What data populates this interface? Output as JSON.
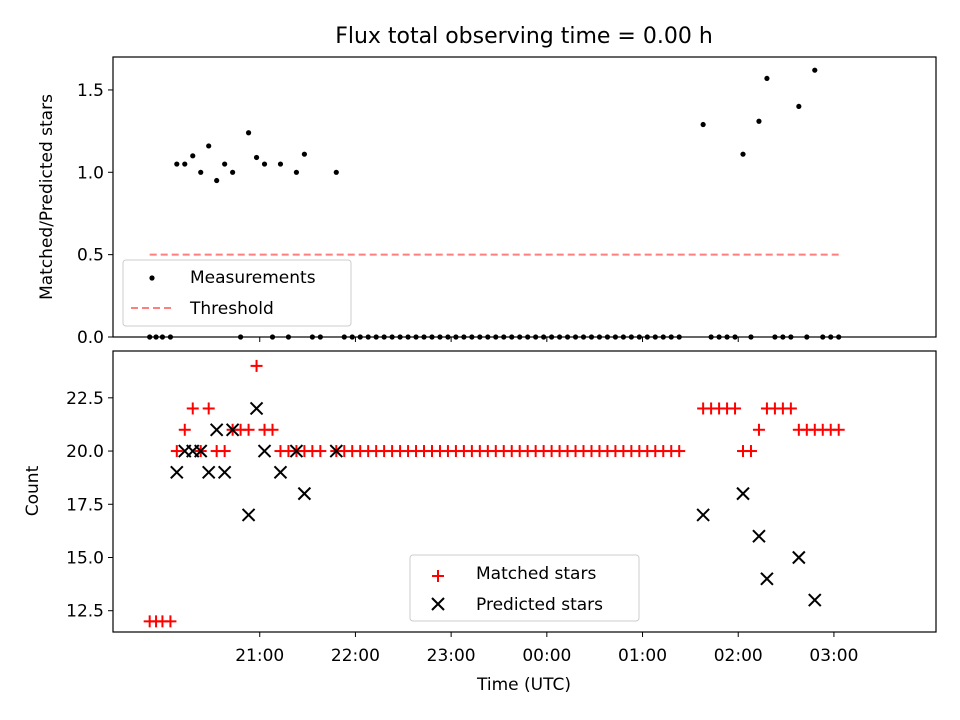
{
  "chart_data": [
    {
      "type": "scatter",
      "title": "Flux total observing time = 0.00 h",
      "xlabel": "",
      "ylabel": "Matched/Predicted stars",
      "xlim": [
        -32,
        484
      ],
      "ylim": [
        0,
        1.7
      ],
      "yticks": [
        0.0,
        0.5,
        1.0,
        1.5
      ],
      "ytick_labels": [
        "0.0",
        "0.5",
        "1.0",
        "1.5"
      ],
      "xticks": [
        60,
        120,
        180,
        240,
        300,
        360
      ],
      "legend": {
        "position": "lower-left",
        "entries": [
          {
            "key": "measurements",
            "label": "Measurements"
          },
          {
            "key": "threshold",
            "label": "Threshold"
          }
        ]
      },
      "series": [
        {
          "key": "measurements",
          "name": "Measurements",
          "color": "#000000",
          "marker": "dot",
          "points": [
            [
              -9,
              0
            ],
            [
              -5,
              0
            ],
            [
              -1,
              0
            ],
            [
              4,
              0
            ],
            [
              8,
              1.05
            ],
            [
              13,
              1.05
            ],
            [
              18,
              1.1
            ],
            [
              23,
              1.0
            ],
            [
              28,
              1.16
            ],
            [
              33,
              0.95
            ],
            [
              38,
              1.05
            ],
            [
              43,
              1.0
            ],
            [
              48,
              0
            ],
            [
              53,
              1.24
            ],
            [
              58,
              1.09
            ],
            [
              63,
              1.05
            ],
            [
              68,
              0
            ],
            [
              73,
              1.05
            ],
            [
              78,
              0
            ],
            [
              83,
              1.0
            ],
            [
              88,
              1.11
            ],
            [
              93,
              0
            ],
            [
              98,
              0
            ],
            [
              108,
              1.0
            ],
            [
              113,
              0
            ],
            [
              118,
              0
            ],
            [
              123,
              0
            ],
            [
              128,
              0
            ],
            [
              133,
              0
            ],
            [
              138,
              0
            ],
            [
              143,
              0
            ],
            [
              148,
              0
            ],
            [
              153,
              0
            ],
            [
              158,
              0
            ],
            [
              163,
              0
            ],
            [
              168,
              0
            ],
            [
              173,
              0
            ],
            [
              178,
              0
            ],
            [
              183,
              0
            ],
            [
              188,
              0
            ],
            [
              193,
              0
            ],
            [
              198,
              0
            ],
            [
              203,
              0
            ],
            [
              208,
              0
            ],
            [
              213,
              0
            ],
            [
              218,
              0
            ],
            [
              223,
              0
            ],
            [
              228,
              0
            ],
            [
              233,
              0
            ],
            [
              238,
              0
            ],
            [
              243,
              0
            ],
            [
              248,
              0
            ],
            [
              253,
              0
            ],
            [
              258,
              0
            ],
            [
              263,
              0
            ],
            [
              268,
              0
            ],
            [
              273,
              0
            ],
            [
              278,
              0
            ],
            [
              283,
              0
            ],
            [
              288,
              0
            ],
            [
              293,
              0
            ],
            [
              298,
              0
            ],
            [
              303,
              0
            ],
            [
              308,
              0
            ],
            [
              313,
              0
            ],
            [
              318,
              0
            ],
            [
              323,
              0
            ],
            [
              338,
              1.29
            ],
            [
              343,
              0
            ],
            [
              348,
              0
            ],
            [
              353,
              0
            ],
            [
              358,
              0
            ],
            [
              363,
              1.11
            ],
            [
              368,
              0
            ],
            [
              373,
              1.31
            ],
            [
              378,
              1.57
            ],
            [
              383,
              0
            ],
            [
              388,
              0
            ],
            [
              393,
              0
            ],
            [
              398,
              1.4
            ],
            [
              403,
              0
            ],
            [
              408,
              1.62
            ],
            [
              413,
              0
            ],
            [
              418,
              0
            ],
            [
              423,
              0
            ]
          ]
        },
        {
          "key": "threshold",
          "name": "Threshold",
          "color": "#ff7f7f",
          "style": "dashed",
          "x": [
            -9,
            423
          ],
          "y": [
            0.5,
            0.5
          ]
        }
      ]
    },
    {
      "type": "scatter",
      "xlabel": "Time (UTC)",
      "ylabel": "Count",
      "xlim": [
        -32,
        484
      ],
      "ylim": [
        11.5,
        24.7
      ],
      "yticks": [
        12.5,
        15.0,
        17.5,
        20.0,
        22.5
      ],
      "ytick_labels": [
        "12.5",
        "15.0",
        "17.5",
        "20.0",
        "22.5"
      ],
      "xticks": [
        60,
        120,
        180,
        240,
        300,
        360,
        420
      ],
      "xtick_labels": [
        "21:00",
        "22:00",
        "23:00",
        "00:00",
        "01:00",
        "02:00",
        "03:00"
      ],
      "legend": {
        "position": "lower-center",
        "entries": [
          {
            "key": "matched",
            "label": "Matched stars"
          },
          {
            "key": "predicted",
            "label": "Predicted stars"
          }
        ]
      },
      "series": [
        {
          "key": "matched",
          "name": "Matched stars",
          "color": "#ff0000",
          "marker": "plus",
          "points": [
            [
              -9,
              12
            ],
            [
              -5,
              12
            ],
            [
              -1,
              12
            ],
            [
              4,
              12
            ],
            [
              8,
              20
            ],
            [
              13,
              21
            ],
            [
              18,
              22
            ],
            [
              23,
              20
            ],
            [
              28,
              22
            ],
            [
              33,
              20
            ],
            [
              38,
              20
            ],
            [
              43,
              21
            ],
            [
              48,
              21
            ],
            [
              53,
              21
            ],
            [
              58,
              24
            ],
            [
              63,
              21
            ],
            [
              68,
              21
            ],
            [
              73,
              20
            ],
            [
              78,
              20
            ],
            [
              83,
              20
            ],
            [
              88,
              20
            ],
            [
              93,
              20
            ],
            [
              98,
              20
            ],
            [
              108,
              20
            ],
            [
              113,
              20
            ],
            [
              118,
              20
            ],
            [
              123,
              20
            ],
            [
              128,
              20
            ],
            [
              133,
              20
            ],
            [
              138,
              20
            ],
            [
              143,
              20
            ],
            [
              148,
              20
            ],
            [
              153,
              20
            ],
            [
              158,
              20
            ],
            [
              163,
              20
            ],
            [
              168,
              20
            ],
            [
              173,
              20
            ],
            [
              178,
              20
            ],
            [
              183,
              20
            ],
            [
              188,
              20
            ],
            [
              193,
              20
            ],
            [
              198,
              20
            ],
            [
              203,
              20
            ],
            [
              208,
              20
            ],
            [
              213,
              20
            ],
            [
              218,
              20
            ],
            [
              223,
              20
            ],
            [
              228,
              20
            ],
            [
              233,
              20
            ],
            [
              238,
              20
            ],
            [
              243,
              20
            ],
            [
              248,
              20
            ],
            [
              253,
              20
            ],
            [
              258,
              20
            ],
            [
              263,
              20
            ],
            [
              268,
              20
            ],
            [
              273,
              20
            ],
            [
              278,
              20
            ],
            [
              283,
              20
            ],
            [
              288,
              20
            ],
            [
              293,
              20
            ],
            [
              298,
              20
            ],
            [
              303,
              20
            ],
            [
              308,
              20
            ],
            [
              313,
              20
            ],
            [
              318,
              20
            ],
            [
              323,
              20
            ],
            [
              338,
              22
            ],
            [
              343,
              22
            ],
            [
              348,
              22
            ],
            [
              353,
              22
            ],
            [
              358,
              22
            ],
            [
              363,
              20
            ],
            [
              368,
              20
            ],
            [
              373,
              21
            ],
            [
              378,
              22
            ],
            [
              383,
              22
            ],
            [
              388,
              22
            ],
            [
              393,
              22
            ],
            [
              398,
              21
            ],
            [
              403,
              21
            ],
            [
              408,
              21
            ],
            [
              413,
              21
            ],
            [
              418,
              21
            ],
            [
              423,
              21
            ]
          ]
        },
        {
          "key": "predicted",
          "name": "Predicted stars",
          "color": "#000000",
          "marker": "x",
          "points": [
            [
              8,
              19
            ],
            [
              13,
              20
            ],
            [
              18,
              20
            ],
            [
              23,
              20
            ],
            [
              28,
              19
            ],
            [
              33,
              21
            ],
            [
              38,
              19
            ],
            [
              43,
              21
            ],
            [
              53,
              17
            ],
            [
              58,
              22
            ],
            [
              63,
              20
            ],
            [
              73,
              19
            ],
            [
              83,
              20
            ],
            [
              88,
              18
            ],
            [
              108,
              20
            ],
            [
              338,
              17
            ],
            [
              363,
              18
            ],
            [
              373,
              16
            ],
            [
              378,
              14
            ],
            [
              398,
              15
            ],
            [
              408,
              13
            ]
          ]
        }
      ]
    }
  ]
}
